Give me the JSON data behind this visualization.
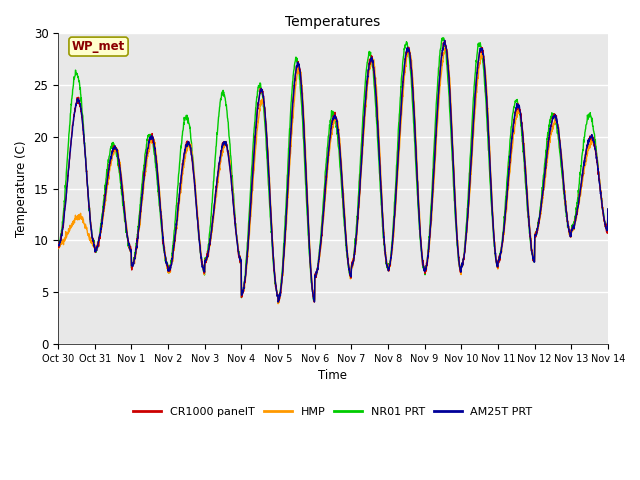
{
  "title": "Temperatures",
  "ylabel": "Temperature (C)",
  "xlabel": "Time",
  "annotation": "WP_met",
  "ylim": [
    0,
    30
  ],
  "bg_color": "#e8e8e8",
  "fig_bg": "#ffffff",
  "series": {
    "CR1000 panelT": {
      "color": "#cc0000",
      "zorder": 4,
      "lw": 1.0
    },
    "HMP": {
      "color": "#ff9900",
      "zorder": 3,
      "lw": 1.0
    },
    "NR01 PRT": {
      "color": "#00cc00",
      "zorder": 2,
      "lw": 1.0
    },
    "AM25T PRT": {
      "color": "#000099",
      "zorder": 5,
      "lw": 1.0
    }
  },
  "xtick_labels": [
    "Oct 30",
    "Oct 31",
    "Nov 1",
    "Nov 2",
    "Nov 3",
    "Nov 4",
    "Nov 5",
    "Nov 6",
    "Nov 7",
    "Nov 8",
    "Nov 9",
    "Nov 10",
    "Nov 11",
    "Nov 12",
    "Nov 13",
    "Nov 14"
  ],
  "ytick_labels": [
    "0",
    "5",
    "10",
    "15",
    "20",
    "25",
    "30"
  ],
  "ytick_values": [
    0,
    5,
    10,
    15,
    20,
    25,
    30
  ],
  "daily_mins_base": [
    9.5,
    9.0,
    7.5,
    7.0,
    8.0,
    4.7,
    4.2,
    6.5,
    7.5,
    7.2,
    7.0,
    7.5,
    8.0,
    10.5,
    11.0,
    13.0
  ],
  "daily_maxs_base": [
    23.5,
    19.0,
    20.0,
    19.5,
    19.5,
    24.5,
    27.0,
    22.0,
    27.5,
    28.5,
    29.0,
    28.5,
    23.0,
    22.0,
    20.0,
    14.0
  ],
  "daily_maxs_green": [
    26.2,
    19.2,
    20.2,
    22.0,
    24.2,
    25.0,
    27.5,
    22.3,
    28.0,
    29.0,
    29.5,
    29.0,
    23.5,
    22.2,
    22.0,
    14.5
  ],
  "daily_maxs_orange": [
    12.3,
    18.8,
    19.8,
    19.2,
    19.2,
    23.5,
    26.5,
    21.8,
    27.5,
    28.2,
    28.5,
    28.0,
    22.5,
    21.5,
    19.5,
    13.5
  ],
  "rise_sharpness": 8.0,
  "fall_sharpness": 3.5,
  "peak_time": 0.55
}
